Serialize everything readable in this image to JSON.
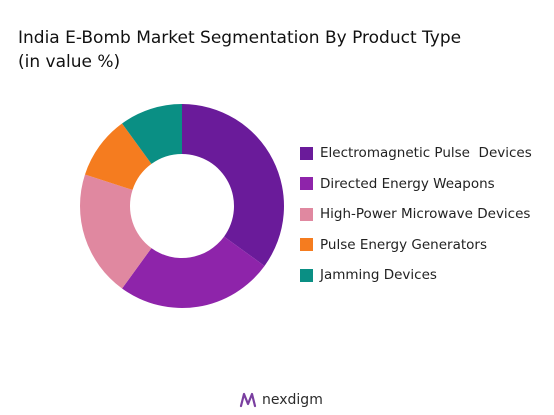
{
  "header": {
    "title_line1": "India E-Bomb Market Segmentation By Product Type",
    "title_line2": "(in value %)"
  },
  "chart_data": {
    "type": "pie",
    "variant": "donut",
    "categories": [
      "Electromagnetic Pulse  Devices",
      "Directed Energy Weapons",
      "High-Power Microwave Devices",
      "Pulse Energy Generators",
      "Jamming Devices"
    ],
    "values": [
      35,
      25,
      20,
      10,
      10
    ],
    "colors": [
      "#6a1b9a",
      "#8e24aa",
      "#e088a0",
      "#f57c1f",
      "#0a8f84"
    ],
    "legend_position": "right"
  },
  "brand": {
    "name": "nexdigm",
    "logo_icon": "nexdigm-logo-icon"
  }
}
